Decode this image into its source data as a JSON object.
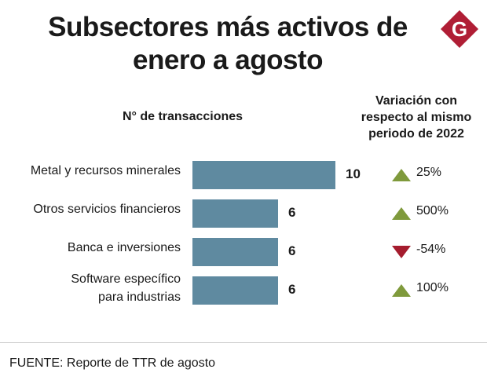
{
  "title_line1": "Subsectores más activos de",
  "title_line2": "enero a agosto",
  "logo": {
    "letter": "G",
    "color": "#b01e35"
  },
  "chart_data": {
    "type": "bar",
    "orientation": "horizontal",
    "title": "Subsectores más activos de enero a agosto",
    "xlabel": "N° de transacciones",
    "variation_label": "Variación con respecto al mismo periodo de 2022",
    "categories": [
      {
        "line1": "Metal y recursos minerales",
        "line2": ""
      },
      {
        "line1": "Otros servicios financieros",
        "line2": ""
      },
      {
        "line1": "Banca e inversiones",
        "line2": ""
      },
      {
        "line1": "Software específico",
        "line2": "para industrias"
      }
    ],
    "values": [
      10,
      6,
      6,
      6
    ],
    "variation": [
      "25%",
      "500%",
      "-54%",
      "100%"
    ],
    "variation_direction": [
      "up",
      "up",
      "down",
      "up"
    ],
    "xlim": [
      0,
      10
    ],
    "bar_color": "#5f8aa0",
    "up_color": "#7f9a3c",
    "down_color": "#a51c2e"
  },
  "header_left": "N° de transacciones",
  "header_right": {
    "line1": "Variación con",
    "line2": "respecto al mismo",
    "line3": "periodo de 2022"
  },
  "source": "FUENTE: Reporte de TTR de agosto"
}
